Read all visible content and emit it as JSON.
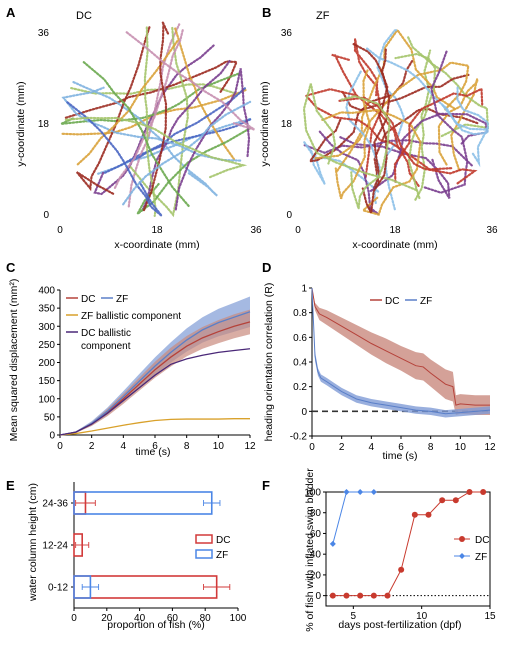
{
  "panels": {
    "A": {
      "letter": "A",
      "subtitle": "DC",
      "xlabel": "x-coordinate (mm)",
      "ylabel": "y-coordinate (mm)",
      "xticks": [
        "0",
        "18",
        "36"
      ],
      "yticks": [
        "0",
        "18",
        "36"
      ]
    },
    "B": {
      "letter": "B",
      "subtitle": "ZF",
      "xlabel": "x-coordinate (mm)",
      "ylabel": "y-coordinate (mm)",
      "xticks": [
        "0",
        "18",
        "36"
      ],
      "yticks": [
        "0",
        "18",
        "36"
      ]
    },
    "C": {
      "letter": "C",
      "xlabel": "time (s)",
      "ylabel": "Mean squared displacement (mm²)",
      "xticks": [
        "0",
        "2",
        "4",
        "6",
        "8",
        "10",
        "12"
      ],
      "yticks": [
        "0",
        "50",
        "100",
        "150",
        "200",
        "250",
        "300",
        "350",
        "400"
      ],
      "legend": {
        "dc": "DC",
        "zf": "ZF",
        "zf_ballistic": "ZF ballistic component",
        "dc_ballistic_1": "DC ballistic",
        "dc_ballistic_2": "component"
      }
    },
    "D": {
      "letter": "D",
      "xlabel": "time (s)",
      "ylabel": "heading orientation correlation (R)",
      "xticks": [
        "0",
        "2",
        "4",
        "6",
        "8",
        "10",
        "12"
      ],
      "yticks": [
        "-0.2",
        "0",
        "0.2",
        "0.4",
        "0.6",
        "0.8",
        "1"
      ],
      "legend": {
        "dc": "DC",
        "zf": "ZF"
      }
    },
    "E": {
      "letter": "E",
      "xlabel": "proportion of fish (%)",
      "ylabel": "water column height (cm)",
      "xticks": [
        "0",
        "20",
        "40",
        "60",
        "80",
        "100"
      ],
      "legend": {
        "dc": "DC",
        "zf": "ZF"
      }
    },
    "F": {
      "letter": "F",
      "xlabel": "days post-fertilization (dpf)",
      "ylabel": "% of fish with inflated swim bladder",
      "xticks": [
        "5",
        "10",
        "15"
      ],
      "yticks": [
        "0",
        "20",
        "40",
        "60",
        "80",
        "100"
      ],
      "legend": {
        "dc": "DC",
        "zf": "ZF"
      }
    }
  },
  "colors": {
    "dc": "#b5423a",
    "dc_band": "#c98a7e",
    "zf": "#5a7fc8",
    "zf_band": "#7f9bd6",
    "zf_ballistic": "#d9a12b",
    "dc_ballistic": "#4a2878",
    "bar_dc": "#d23a3a",
    "bar_zf": "#4b86e6"
  },
  "chart_data": [
    {
      "panel": "C",
      "type": "line",
      "xlim": [
        0,
        12
      ],
      "ylim": [
        0,
        400
      ],
      "series": [
        {
          "name": "DC",
          "x": [
            0,
            1,
            2,
            3,
            4,
            5,
            6,
            7,
            8,
            9,
            10,
            11,
            12
          ],
          "y": [
            0,
            8,
            30,
            62,
            100,
            140,
            180,
            215,
            245,
            268,
            285,
            300,
            312
          ],
          "band": [
            0,
            2,
            5,
            10,
            14,
            18,
            22,
            26,
            28,
            30,
            32,
            33,
            34
          ]
        },
        {
          "name": "ZF",
          "x": [
            0,
            1,
            2,
            3,
            4,
            5,
            6,
            7,
            8,
            9,
            10,
            11,
            12
          ],
          "y": [
            0,
            8,
            32,
            66,
            106,
            148,
            190,
            228,
            262,
            290,
            310,
            325,
            340
          ],
          "band": [
            0,
            2,
            6,
            10,
            15,
            20,
            24,
            28,
            32,
            35,
            38,
            40,
            42
          ]
        },
        {
          "name": "ZF ballistic component",
          "x": [
            0,
            1,
            2,
            3,
            4,
            5,
            6,
            7,
            8,
            9,
            10,
            11,
            12
          ],
          "y": [
            0,
            4,
            11,
            19,
            27,
            34,
            40,
            43,
            44,
            44,
            44,
            45,
            45
          ]
        },
        {
          "name": "DC ballistic component",
          "x": [
            0,
            1,
            2,
            3,
            4,
            5,
            6,
            7,
            8,
            9,
            10,
            11,
            12
          ],
          "y": [
            0,
            8,
            30,
            60,
            95,
            130,
            165,
            195,
            210,
            220,
            228,
            233,
            238
          ]
        }
      ]
    },
    {
      "panel": "D",
      "type": "line",
      "xlim": [
        0,
        12
      ],
      "ylim": [
        -0.2,
        1
      ],
      "series": [
        {
          "name": "DC",
          "x": [
            0,
            0.2,
            0.5,
            1,
            2,
            3,
            4,
            5,
            6,
            7,
            7.5,
            8,
            9,
            9.5,
            9.7,
            10,
            11,
            12
          ],
          "y": [
            1,
            0.85,
            0.79,
            0.76,
            0.69,
            0.62,
            0.55,
            0.49,
            0.43,
            0.37,
            0.36,
            0.31,
            0.22,
            0.2,
            0.05,
            0.06,
            0.05,
            0.05
          ],
          "band": [
            0,
            0.03,
            0.05,
            0.06,
            0.07,
            0.08,
            0.09,
            0.1,
            0.1,
            0.11,
            0.11,
            0.11,
            0.12,
            0.12,
            0.08,
            0.08,
            0.08,
            0.08
          ]
        },
        {
          "name": "ZF",
          "x": [
            0,
            0.2,
            0.4,
            0.6,
            1,
            1.5,
            2,
            3,
            4,
            5,
            6,
            7,
            8,
            9,
            10,
            11,
            12
          ],
          "y": [
            1,
            0.45,
            0.32,
            0.27,
            0.24,
            0.2,
            0.16,
            0.1,
            0.07,
            0.05,
            0.03,
            0.01,
            0.0,
            -0.02,
            -0.01,
            0.0,
            0.01
          ],
          "band": [
            0,
            0.04,
            0.03,
            0.03,
            0.03,
            0.03,
            0.03,
            0.03,
            0.03,
            0.03,
            0.03,
            0.03,
            0.03,
            0.03,
            0.03,
            0.03,
            0.03
          ]
        }
      ],
      "reference_line": 0
    },
    {
      "panel": "E",
      "type": "bar",
      "orientation": "horizontal",
      "xlim": [
        0,
        100
      ],
      "categories": [
        "24-36",
        "12-24",
        "0-12"
      ],
      "series": [
        {
          "name": "DC",
          "values": [
            7,
            5,
            87
          ],
          "errors": [
            6,
            4,
            8
          ]
        },
        {
          "name": "ZF",
          "values": [
            84,
            0,
            10
          ],
          "errors": [
            5,
            0,
            5
          ]
        }
      ]
    },
    {
      "panel": "F",
      "type": "line",
      "xlim": [
        3,
        15
      ],
      "ylim": [
        -10,
        100
      ],
      "series": [
        {
          "name": "DC",
          "x": [
            3.5,
            4.5,
            5.5,
            6.5,
            7.5,
            8.5,
            9.5,
            10.5,
            11.5,
            12.5,
            13.5,
            14.5
          ],
          "y": [
            0,
            0,
            0,
            0,
            0,
            25,
            78,
            78,
            92,
            92,
            100,
            100
          ]
        },
        {
          "name": "ZF",
          "x": [
            3.5,
            4.5,
            5.5,
            6.5
          ],
          "y": [
            50,
            100,
            100,
            100
          ]
        }
      ],
      "reference_line": 0
    }
  ]
}
